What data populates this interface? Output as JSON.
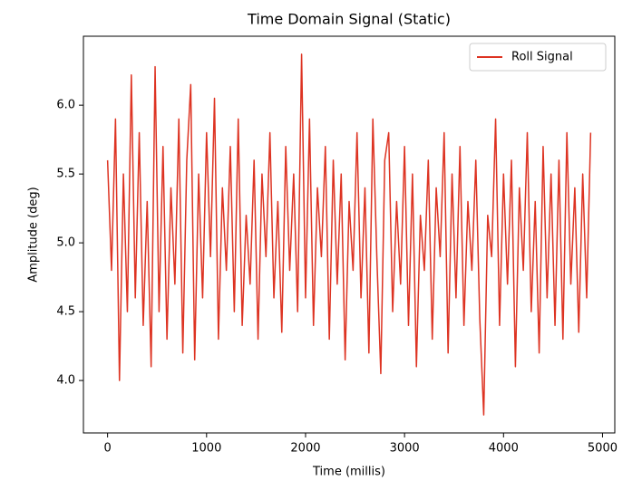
{
  "chart_data": {
    "type": "line",
    "title": "Time Domain Signal (Static)",
    "x_label": "Time (millis)",
    "y_label": "Amplitude (deg)",
    "x": [
      0,
      40,
      80,
      120,
      160,
      200,
      240,
      280,
      320,
      360,
      400,
      440,
      480,
      520,
      560,
      600,
      640,
      680,
      720,
      760,
      800,
      840,
      880,
      920,
      960,
      1000,
      1040,
      1080,
      1120,
      1160,
      1200,
      1240,
      1280,
      1320,
      1360,
      1400,
      1440,
      1480,
      1520,
      1560,
      1600,
      1640,
      1680,
      1720,
      1760,
      1800,
      1840,
      1880,
      1920,
      1960,
      2000,
      2040,
      2080,
      2120,
      2160,
      2200,
      2240,
      2280,
      2320,
      2360,
      2400,
      2440,
      2480,
      2520,
      2560,
      2600,
      2640,
      2680,
      2720,
      2760,
      2800,
      2840,
      2880,
      2920,
      2960,
      3000,
      3040,
      3080,
      3120,
      3160,
      3200,
      3240,
      3280,
      3320,
      3360,
      3400,
      3440,
      3480,
      3520,
      3560,
      3600,
      3640,
      3680,
      3720,
      3760,
      3800,
      3840,
      3880,
      3920,
      3960,
      4000,
      4040,
      4080,
      4120,
      4160,
      4200,
      4240,
      4280,
      4320,
      4360,
      4400,
      4440,
      4480,
      4520,
      4560,
      4600,
      4640,
      4680,
      4720,
      4760,
      4800,
      4840,
      4880
    ],
    "series": [
      {
        "name": "Roll Signal",
        "color": "#dd3322",
        "values": [
          5.6,
          4.8,
          5.9,
          4.0,
          5.5,
          4.5,
          6.22,
          4.6,
          5.8,
          4.4,
          5.3,
          4.1,
          6.28,
          4.5,
          5.7,
          4.3,
          5.4,
          4.7,
          5.9,
          4.2,
          5.6,
          6.15,
          4.15,
          5.5,
          4.6,
          5.8,
          4.9,
          6.05,
          4.3,
          5.4,
          4.8,
          5.7,
          4.5,
          5.9,
          4.4,
          5.2,
          4.7,
          5.6,
          4.3,
          5.5,
          4.9,
          5.8,
          4.6,
          5.3,
          4.35,
          5.7,
          4.8,
          5.5,
          4.5,
          6.37,
          4.6,
          5.9,
          4.4,
          5.4,
          4.9,
          5.7,
          4.3,
          5.6,
          4.7,
          5.5,
          4.15,
          5.3,
          4.8,
          5.8,
          4.6,
          5.4,
          4.2,
          5.9,
          4.9,
          4.05,
          5.6,
          5.8,
          4.5,
          5.3,
          4.7,
          5.7,
          4.4,
          5.5,
          4.1,
          5.2,
          4.8,
          5.6,
          4.3,
          5.4,
          4.9,
          5.8,
          4.2,
          5.5,
          4.6,
          5.7,
          4.4,
          5.3,
          4.8,
          5.6,
          4.45,
          3.75,
          5.2,
          4.9,
          5.9,
          4.4,
          5.5,
          4.7,
          5.6,
          4.1,
          5.4,
          4.8,
          5.8,
          4.5,
          5.3,
          4.2,
          5.7,
          4.6,
          5.5,
          4.4,
          5.6,
          4.3,
          5.8,
          4.7,
          5.4,
          4.35,
          5.5,
          4.6,
          5.8
        ]
      }
    ],
    "xlim": [
      -244,
      5124
    ],
    "ylim": [
      3.619,
      6.501
    ],
    "xticks": [
      0,
      1000,
      2000,
      3000,
      4000,
      5000
    ],
    "yticks": [
      {
        "value": 4,
        "label": "4.0"
      },
      {
        "value": 4.5,
        "label": "4.5"
      },
      {
        "value": 5,
        "label": "5.0"
      },
      {
        "value": 5.5,
        "label": "5.5"
      },
      {
        "value": 6,
        "label": "6.0"
      }
    ],
    "legend": "upper right"
  }
}
